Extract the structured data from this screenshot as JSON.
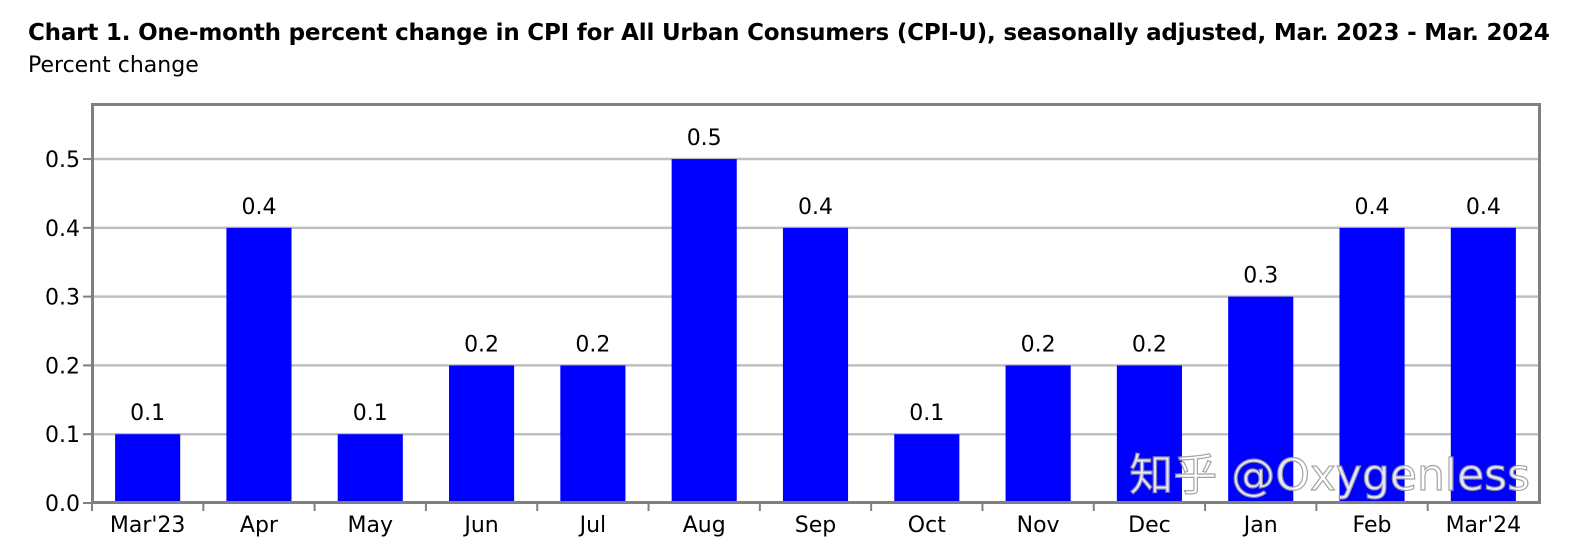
{
  "chart_data": {
    "type": "bar",
    "title": "Chart 1. One-month percent change in CPI for All Urban Consumers (CPI-U), seasonally adjusted, Mar. 2023 - Mar. 2024",
    "subtitle": "Percent change",
    "categories": [
      "Mar'23",
      "Apr",
      "May",
      "Jun",
      "Jul",
      "Aug",
      "Sep",
      "Oct",
      "Nov",
      "Dec",
      "Jan",
      "Feb",
      "Mar'24"
    ],
    "values": [
      0.1,
      0.4,
      0.1,
      0.2,
      0.2,
      0.5,
      0.4,
      0.1,
      0.2,
      0.2,
      0.3,
      0.4,
      0.4
    ],
    "value_labels": [
      "0.1",
      "0.4",
      "0.1",
      "0.2",
      "0.2",
      "0.5",
      "0.4",
      "0.1",
      "0.2",
      "0.2",
      "0.3",
      "0.4",
      "0.4"
    ],
    "ylim": [
      0,
      0.58
    ],
    "yticks": [
      0.0,
      0.1,
      0.2,
      0.3,
      0.4,
      0.5
    ],
    "ytick_labels": [
      "0.0",
      "0.1",
      "0.2",
      "0.3",
      "0.4",
      "0.5"
    ],
    "xlabel": "",
    "ylabel": "",
    "grid": true,
    "bar_color": "#0000ff",
    "grid_color": "#c0c0c0",
    "frame_color": "#808080"
  },
  "watermark": "知乎 @Oxygenless"
}
